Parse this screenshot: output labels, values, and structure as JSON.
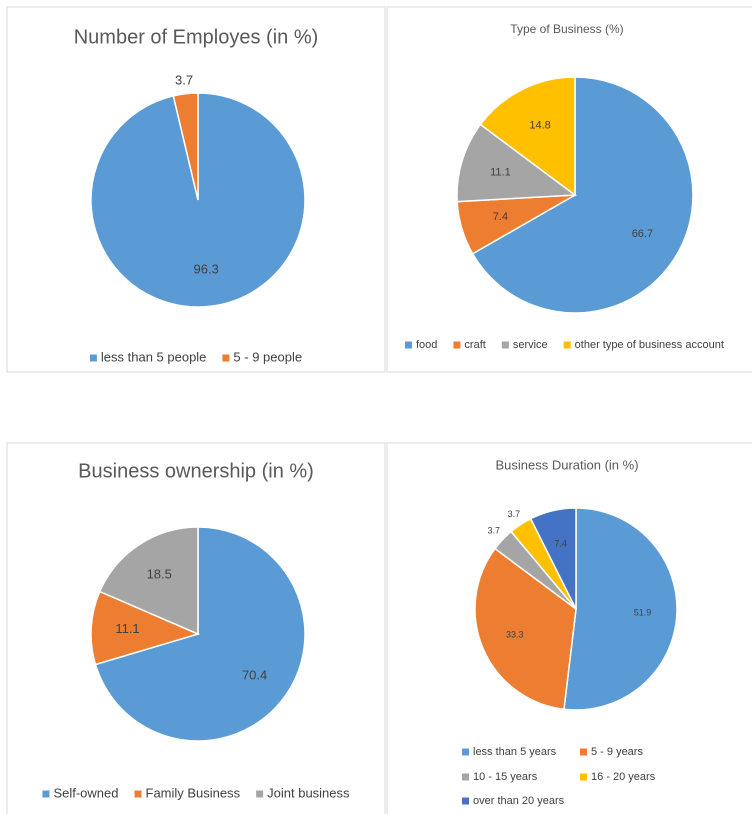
{
  "chart_data": [
    {
      "type": "pie",
      "title": "Number of Employes (in %)",
      "categories": [
        "less than 5 people",
        "5 - 9 people"
      ],
      "values": [
        96.3,
        3.7
      ],
      "colors": [
        "#5b9bd5",
        "#ed7d31"
      ]
    },
    {
      "type": "pie",
      "title": "Type of Business (%)",
      "categories": [
        "food",
        "craft",
        "service",
        "other type of business account"
      ],
      "values": [
        66.7,
        7.4,
        11.1,
        14.8
      ],
      "colors": [
        "#5b9bd5",
        "#ed7d31",
        "#a5a5a5",
        "#ffc000"
      ]
    },
    {
      "type": "pie",
      "title": "Business ownership (in %)",
      "categories": [
        "Self-owned",
        "Family Business",
        "Joint business"
      ],
      "values": [
        70.4,
        11.1,
        18.5
      ],
      "colors": [
        "#5b9bd5",
        "#ed7d31",
        "#a5a5a5"
      ]
    },
    {
      "type": "pie",
      "title": "Business Duration (in %)",
      "categories": [
        "less than 5 years",
        "5 - 9 years",
        "10 - 15 years",
        "16 - 20 years",
        "over than 20 years"
      ],
      "values": [
        51.9,
        33.3,
        3.7,
        3.7,
        7.4
      ],
      "colors": [
        "#5b9bd5",
        "#ed7d31",
        "#a5a5a5",
        "#ffc000",
        "#4472c4"
      ]
    }
  ]
}
